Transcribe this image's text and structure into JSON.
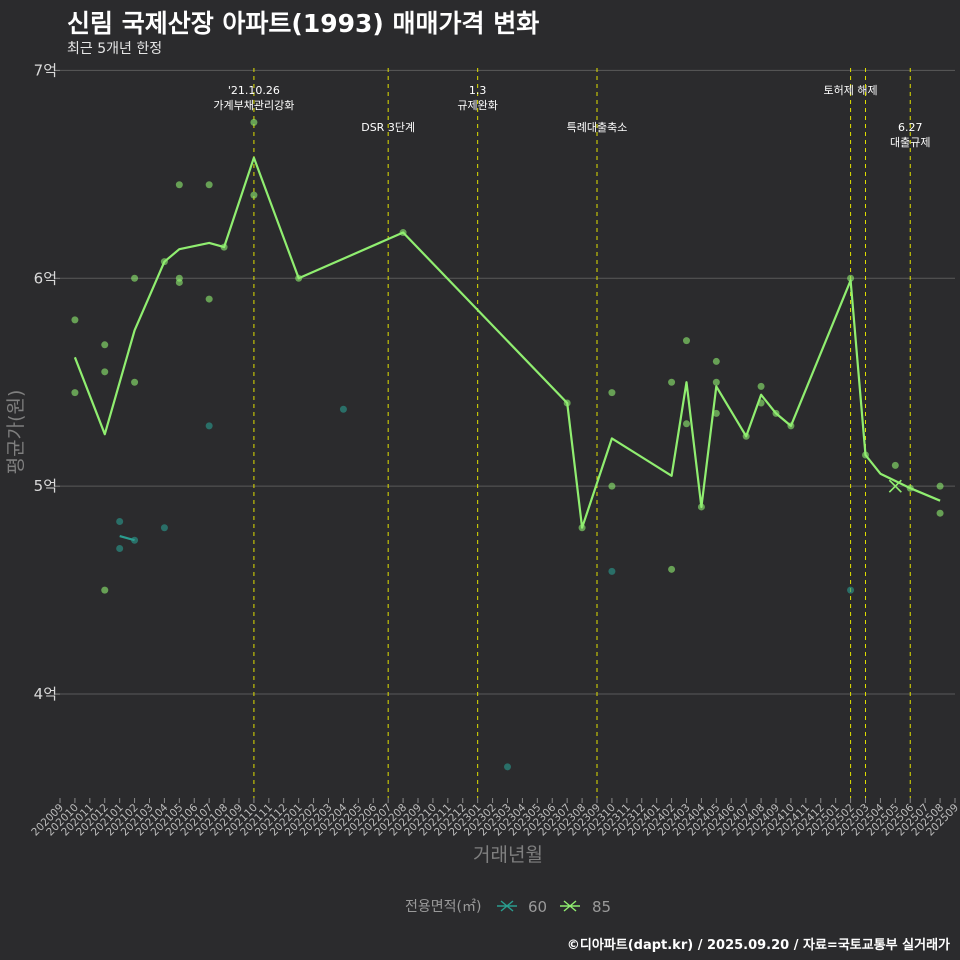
{
  "title": "신림 국제산장 아파트(1993) 매매가격 변화",
  "subtitle": "최근 5개년 한정",
  "caption": "©디아파트(dapt.kr) / 2025.09.20 / 자료=국토교통부 실거래가",
  "colors": {
    "background": "#2b2b2d",
    "grid": "#5a5a5a",
    "event_line": "#e0e000",
    "series_60": "#2a9d8f",
    "series_85": "#90ee70"
  },
  "chart_data": {
    "type": "line",
    "title": "신림 국제산장 아파트(1993) 매매가격 변화",
    "xlabel": "거래년월",
    "ylabel": "평균가(원)",
    "ylim": [
      3.5,
      7.05
    ],
    "y_ticks": [
      4,
      5,
      6,
      7
    ],
    "y_tick_labels": [
      "4억",
      "5억",
      "6억",
      "7억"
    ],
    "x_tick_labels": [
      "202009",
      "202010",
      "202011",
      "202012",
      "202101",
      "202102",
      "202103",
      "202104",
      "202105",
      "202106",
      "202107",
      "202108",
      "202109",
      "202110",
      "202111",
      "202112",
      "202201",
      "202202",
      "202203",
      "202204",
      "202205",
      "202206",
      "202207",
      "202208",
      "202209",
      "202210",
      "202211",
      "202212",
      "202301",
      "202302",
      "202303",
      "202304",
      "202305",
      "202306",
      "202307",
      "202308",
      "202309",
      "202310",
      "202311",
      "202312",
      "202401",
      "202402",
      "202403",
      "202404",
      "202405",
      "202406",
      "202407",
      "202408",
      "202409",
      "202410",
      "202411",
      "202412",
      "202501",
      "202502",
      "202503",
      "202504",
      "202505",
      "202506",
      "202507",
      "202508",
      "202509"
    ],
    "legend": {
      "title": "전용면적(㎡)",
      "entries": [
        "60",
        "85"
      ],
      "position": "bottom"
    },
    "events": [
      {
        "x": "202110",
        "lines": [
          "'21.10.26",
          "가계부채관리강화"
        ],
        "label_top": true
      },
      {
        "x": "202207",
        "lines": [
          "DSR 3단계"
        ],
        "label_top": false
      },
      {
        "x": "202301",
        "lines": [
          "1.3",
          "규제완화"
        ],
        "label_top": true
      },
      {
        "x": "202309",
        "lines": [
          "특례대출축소"
        ],
        "label_top": false
      },
      {
        "x": "202502",
        "lines": [
          "토허제 해제"
        ],
        "label_top": true
      },
      {
        "x": "202503",
        "lines": [],
        "label_top": true
      },
      {
        "x": "202506",
        "lines": [
          "6.27",
          "대출규제"
        ],
        "label_top": false
      }
    ],
    "series": [
      {
        "name": "60",
        "line": [
          [
            "202101",
            4.76
          ],
          [
            "202102",
            4.74
          ]
        ],
        "points": [
          [
            "202101",
            4.83
          ],
          [
            "202101",
            4.7
          ],
          [
            "202102",
            4.74
          ],
          [
            "202104",
            4.8
          ],
          [
            "202107",
            5.29
          ],
          [
            "202204",
            5.37
          ],
          [
            "202303",
            3.65
          ],
          [
            "202310",
            4.59
          ],
          [
            "202502",
            4.5
          ]
        ],
        "cross_points": []
      },
      {
        "name": "85",
        "line": [
          [
            "202010",
            5.62
          ],
          [
            "202012",
            5.25
          ],
          [
            "202102",
            5.75
          ],
          [
            "202104",
            6.08
          ],
          [
            "202105",
            6.14
          ],
          [
            "202107",
            6.17
          ],
          [
            "202108",
            6.15
          ],
          [
            "202110",
            6.58
          ],
          [
            "202201",
            6.0
          ],
          [
            "202208",
            6.22
          ],
          [
            "202307",
            5.4
          ],
          [
            "202308",
            4.8
          ],
          [
            "202310",
            5.23
          ],
          [
            "202402",
            5.05
          ],
          [
            "202403",
            5.5
          ],
          [
            "202404",
            4.9
          ],
          [
            "202405",
            5.48
          ],
          [
            "202407",
            5.24
          ],
          [
            "202408",
            5.44
          ],
          [
            "202409",
            5.35
          ],
          [
            "202410",
            5.29
          ],
          [
            "202502",
            5.99
          ],
          [
            "202503",
            5.15
          ],
          [
            "202504",
            5.06
          ],
          [
            "202506",
            4.99
          ],
          [
            "202508",
            4.93
          ]
        ],
        "points": [
          [
            "202010",
            5.8
          ],
          [
            "202010",
            5.45
          ],
          [
            "202012",
            5.68
          ],
          [
            "202012",
            5.55
          ],
          [
            "202012",
            4.5
          ],
          [
            "202102",
            6.0
          ],
          [
            "202102",
            5.5
          ],
          [
            "202104",
            6.08
          ],
          [
            "202105",
            6.45
          ],
          [
            "202105",
            6.0
          ],
          [
            "202105",
            5.98
          ],
          [
            "202107",
            6.45
          ],
          [
            "202107",
            5.9
          ],
          [
            "202108",
            6.15
          ],
          [
            "202110",
            6.75
          ],
          [
            "202110",
            6.4
          ],
          [
            "202201",
            6.0
          ],
          [
            "202208",
            6.22
          ],
          [
            "202307",
            5.4
          ],
          [
            "202308",
            4.8
          ],
          [
            "202310",
            5.45
          ],
          [
            "202310",
            5.0
          ],
          [
            "202402",
            5.5
          ],
          [
            "202402",
            4.6
          ],
          [
            "202403",
            5.7
          ],
          [
            "202403",
            5.3
          ],
          [
            "202404",
            4.9
          ],
          [
            "202405",
            5.6
          ],
          [
            "202405",
            5.5
          ],
          [
            "202405",
            5.35
          ],
          [
            "202407",
            5.24
          ],
          [
            "202408",
            5.48
          ],
          [
            "202408",
            5.4
          ],
          [
            "202409",
            5.35
          ],
          [
            "202410",
            5.29
          ],
          [
            "202502",
            6.0
          ],
          [
            "202503",
            5.15
          ],
          [
            "202505",
            5.1
          ],
          [
            "202506",
            4.99
          ],
          [
            "202508",
            5.0
          ],
          [
            "202508",
            4.87
          ]
        ],
        "cross_points": [
          [
            "202505",
            5.0
          ]
        ]
      }
    ]
  }
}
